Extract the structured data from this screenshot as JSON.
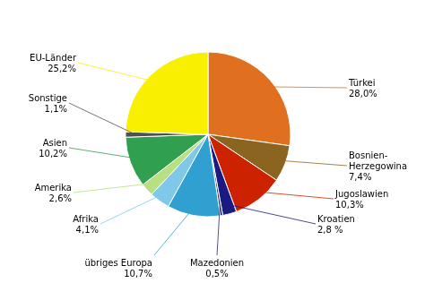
{
  "chart_data": {
    "type": "pie",
    "categories": [
      "Türkei",
      "Bosnien-\nHerzegowina",
      "Jugoslawien",
      "Kroatien",
      "Mazedonien",
      "übriges Europa",
      "Afrika",
      "Amerika",
      "Asien",
      "Sonstige",
      "EU-Länder"
    ],
    "values": [
      28.0,
      7.4,
      10.3,
      2.8,
      0.5,
      10.7,
      4.1,
      2.6,
      10.2,
      1.1,
      25.2
    ],
    "value_labels": [
      "28,0%",
      "7,4%",
      "10,3%",
      "2,8 %",
      "0,5%",
      "10,7%",
      "4,1%",
      "2,6%",
      "10,2%",
      "1,1%",
      "25,2%"
    ],
    "colors": [
      "#E07020",
      "#8B6520",
      "#CC2200",
      "#1A1A80",
      "#2A2A70",
      "#30A0D0",
      "#80C8E8",
      "#B8E080",
      "#30A050",
      "#505050",
      "#F8F000"
    ]
  }
}
